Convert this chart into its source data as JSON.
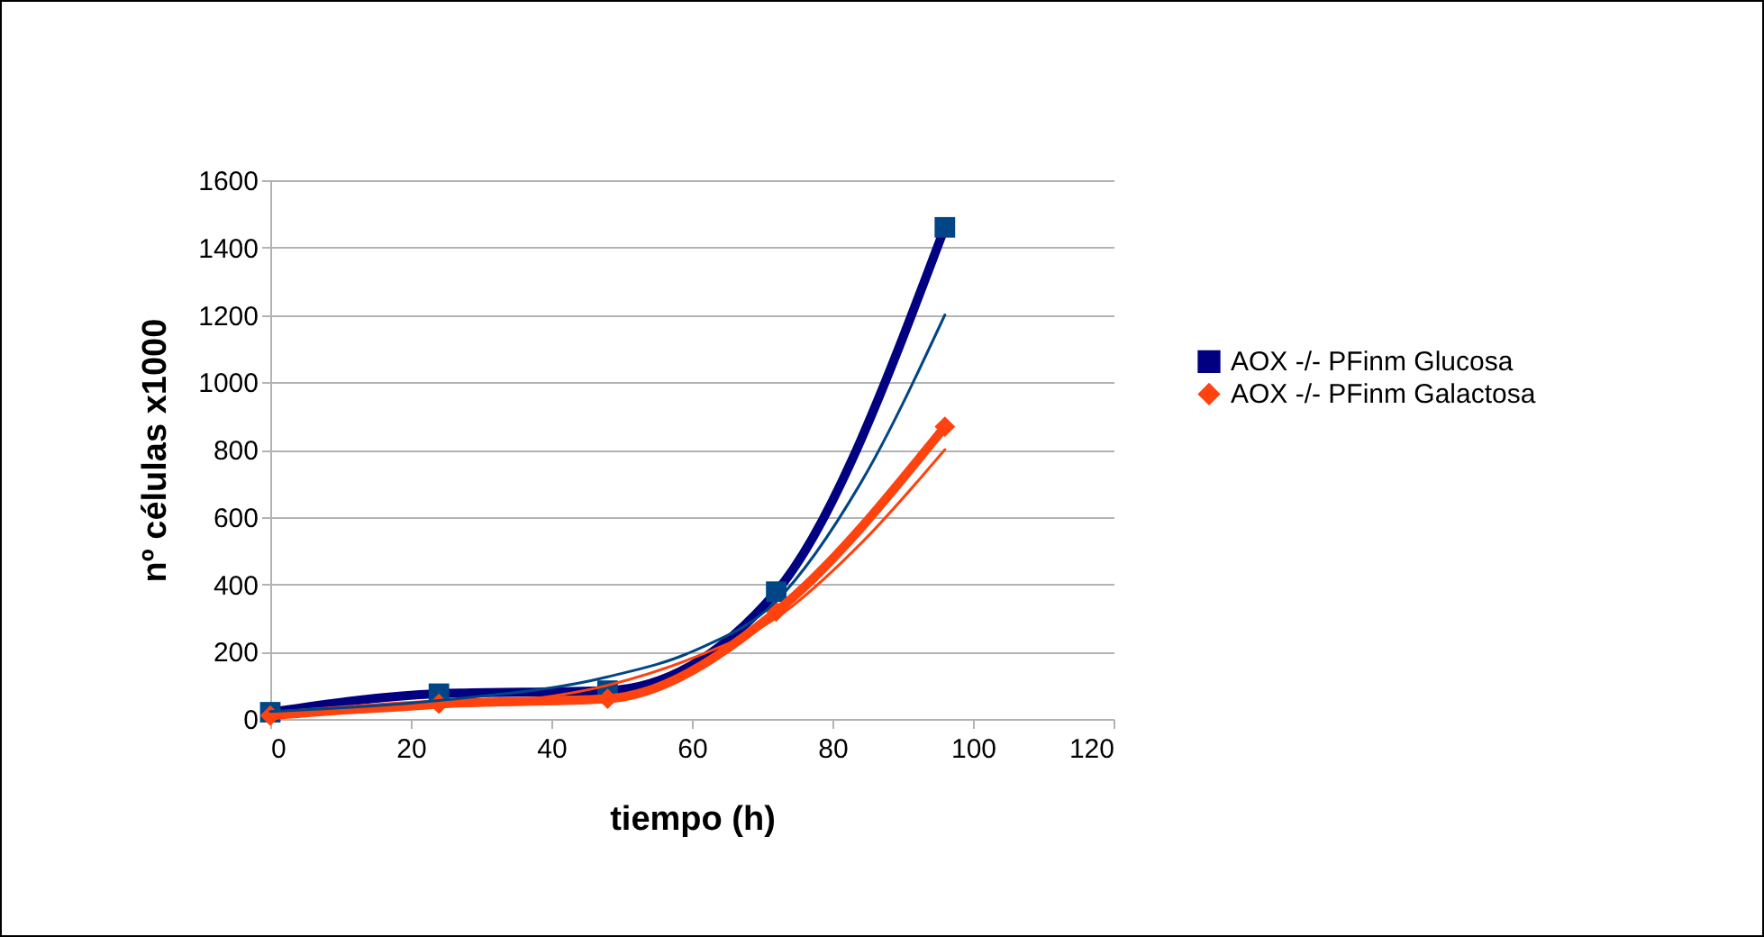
{
  "chart_data": {
    "type": "line",
    "xlabel": "tiempo (h)",
    "ylabel": "nº células x1000",
    "x": [
      0,
      24,
      48,
      72,
      96
    ],
    "series": [
      {
        "name": "AOX -/- PFinm Glucosa",
        "color": "#000080",
        "marker": "square",
        "values": [
          20,
          75,
          84,
          378,
          1460
        ]
      },
      {
        "name": "AOX -/- PFinm Galactosa",
        "color": "#ff420e",
        "marker": "diamond",
        "values": [
          10,
          45,
          60,
          319,
          868
        ]
      },
      {
        "color": "#004586",
        "marker": "none",
        "x": [
          0,
          24,
          48,
          60,
          72,
          84,
          96
        ],
        "values": [
          22,
          55,
          125,
          200,
          350,
          700,
          1200
        ]
      },
      {
        "color": "#ff420e",
        "marker": "none",
        "x": [
          0,
          24,
          48,
          60,
          72,
          84,
          96
        ],
        "values": [
          12,
          35,
          100,
          180,
          300,
          520,
          800
        ]
      }
    ],
    "xlim": [
      0,
      120
    ],
    "xticks": [
      0,
      20,
      40,
      60,
      80,
      100,
      120
    ],
    "ylim": [
      0,
      1600
    ],
    "yticks": [
      0,
      200,
      400,
      600,
      800,
      1000,
      1200,
      1400,
      1600
    ],
    "grid": "y",
    "legend": "right",
    "line_style": "solid"
  }
}
